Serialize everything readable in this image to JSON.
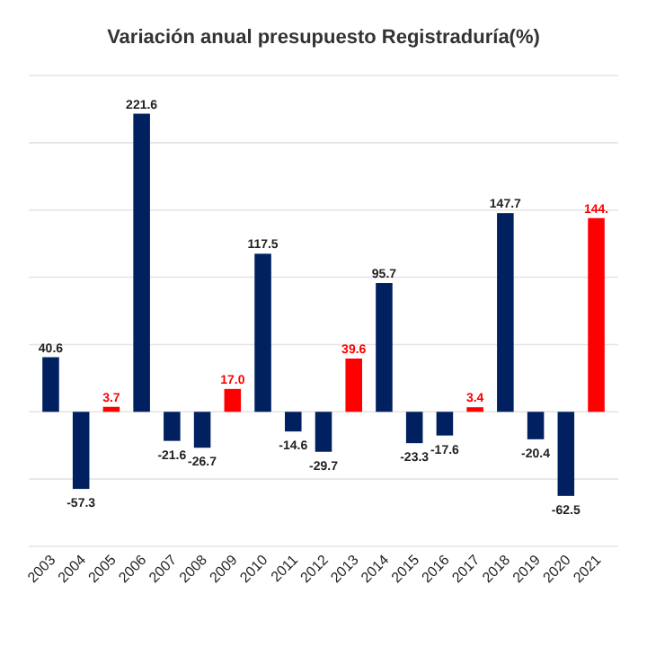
{
  "chart_data": {
    "type": "bar",
    "title": "Variación anual presupuesto Registraduría(%)",
    "categories": [
      "2003",
      "2004",
      "2005",
      "2006",
      "2007",
      "2008",
      "2009",
      "2010",
      "2011",
      "2012",
      "2013",
      "2014",
      "2015",
      "2016",
      "2017",
      "2018",
      "2019",
      "2020",
      "2021"
    ],
    "values": [
      40.6,
      -57.3,
      3.7,
      221.6,
      -21.6,
      -26.7,
      17.0,
      117.5,
      -14.6,
      -29.7,
      39.6,
      95.7,
      -23.3,
      -17.6,
      3.4,
      147.7,
      -20.4,
      -62.5,
      144
    ],
    "value_labels": [
      "40.6",
      "-57.3",
      "3.7",
      "221.6",
      "-21.6",
      "-26.7",
      "17.0",
      "117.5",
      "-14.6",
      "-29.7",
      "39.6",
      "95.7",
      "-23.3",
      "-17.6",
      "3.4",
      "147.7",
      "-20.4",
      "-62.5",
      "144."
    ],
    "colors": [
      "#002060",
      "#002060",
      "#ff0000",
      "#002060",
      "#002060",
      "#002060",
      "#ff0000",
      "#002060",
      "#002060",
      "#002060",
      "#ff0000",
      "#002060",
      "#002060",
      "#002060",
      "#ff0000",
      "#002060",
      "#002060",
      "#002060",
      "#ff0000"
    ],
    "ylim": [
      -100,
      250
    ],
    "yticks": [
      {
        "value": -100,
        "label": null
      },
      {
        "value": -50,
        "label": null
      },
      {
        "value": 0,
        "label": null
      },
      {
        "value": 50,
        "label": null
      },
      {
        "value": 100,
        "label": null
      },
      {
        "value": 150,
        "label": null
      },
      {
        "value": 200,
        "label": null
      },
      {
        "value": 250,
        "label": null
      }
    ],
    "grid": "y",
    "tick_labels": "x"
  }
}
